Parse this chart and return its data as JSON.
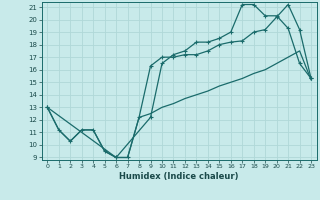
{
  "xlabel": "Humidex (Indice chaleur)",
  "bg_color": "#c8eaea",
  "grid_color": "#b0d8d8",
  "line_color": "#1a6b6b",
  "xlim": [
    -0.5,
    23.5
  ],
  "ylim": [
    8.8,
    21.4
  ],
  "xticks": [
    0,
    1,
    2,
    3,
    4,
    5,
    6,
    7,
    8,
    9,
    10,
    11,
    12,
    13,
    14,
    15,
    16,
    17,
    18,
    19,
    20,
    21,
    22,
    23
  ],
  "yticks": [
    9,
    10,
    11,
    12,
    13,
    14,
    15,
    16,
    17,
    18,
    19,
    20,
    21
  ],
  "line1_x": [
    0,
    1,
    2,
    3,
    4,
    5,
    6,
    7,
    8,
    9,
    10,
    11,
    12,
    13,
    14,
    15,
    16,
    17,
    18,
    19,
    20,
    21,
    22,
    23
  ],
  "line1_y": [
    13,
    11.2,
    10.3,
    11.2,
    11.2,
    9.5,
    9.0,
    9.0,
    12.2,
    12.5,
    13.0,
    13.3,
    13.7,
    14.0,
    14.3,
    14.7,
    15.0,
    15.3,
    15.7,
    16.0,
    16.5,
    17.0,
    17.5,
    15.2
  ],
  "line2_x": [
    0,
    1,
    2,
    3,
    4,
    5,
    6,
    7,
    8,
    9,
    10,
    11,
    12,
    13,
    14,
    15,
    16,
    17,
    18,
    19,
    20,
    21,
    22,
    23
  ],
  "line2_y": [
    13,
    11.2,
    10.3,
    11.2,
    11.2,
    9.5,
    9.0,
    9.0,
    12.2,
    16.3,
    17.0,
    17.0,
    17.2,
    17.2,
    17.5,
    18.0,
    18.2,
    18.3,
    19.0,
    19.2,
    20.2,
    21.2,
    19.2,
    15.3
  ],
  "line3_x": [
    0,
    6,
    9,
    10,
    11,
    12,
    13,
    14,
    15,
    16,
    17,
    18,
    19,
    20,
    21,
    22,
    23
  ],
  "line3_y": [
    13,
    9.0,
    12.2,
    16.5,
    17.2,
    17.5,
    18.2,
    18.2,
    18.5,
    19.0,
    21.2,
    21.2,
    20.3,
    20.3,
    19.3,
    16.5,
    15.3
  ]
}
